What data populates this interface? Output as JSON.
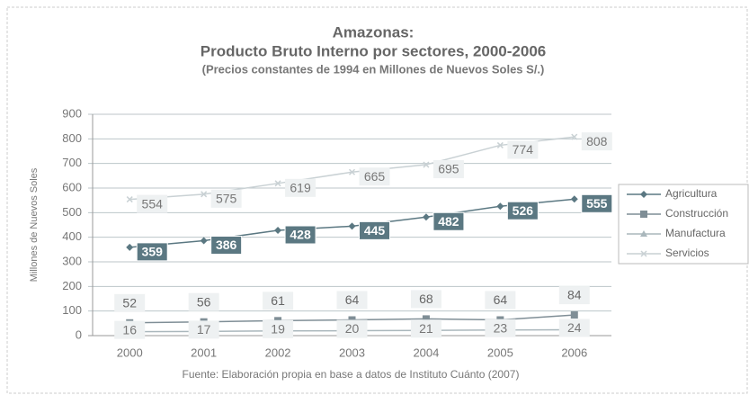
{
  "chart_data": {
    "type": "line",
    "title": "Amazonas:",
    "subtitle": "Producto Bruto Interno por sectores, 2000-2006",
    "note": "(Precios constantes de 1994 en Millones de Nuevos Soles S/.)",
    "y_label": "Millones de Nuevos Soles",
    "source": "Fuente: Elaboración propia en base a datos de Instituto Cuánto (2007)",
    "categories": [
      "2000",
      "2001",
      "2002",
      "2003",
      "2004",
      "2005",
      "2006"
    ],
    "series": [
      {
        "name": "Agricultura",
        "color": "#5b7882",
        "marker": "diamond",
        "values": [
          359,
          386,
          428,
          445,
          482,
          526,
          555
        ]
      },
      {
        "name": "Construcción",
        "color": "#7f8e96",
        "marker": "square",
        "values": [
          52,
          56,
          61,
          64,
          68,
          64,
          84
        ]
      },
      {
        "name": "Manufactura",
        "color": "#aab7bc",
        "marker": "triangle",
        "values": [
          16,
          17,
          19,
          20,
          21,
          23,
          24
        ]
      },
      {
        "name": "Servicios",
        "color": "#c9d1d4",
        "marker": "x",
        "values": [
          554,
          575,
          619,
          665,
          695,
          774,
          808
        ]
      }
    ],
    "ylim": [
      0,
      900
    ],
    "yticks": [
      0,
      100,
      200,
      300,
      400,
      500,
      600,
      700,
      800,
      900
    ],
    "grid": true,
    "legend": "right"
  }
}
